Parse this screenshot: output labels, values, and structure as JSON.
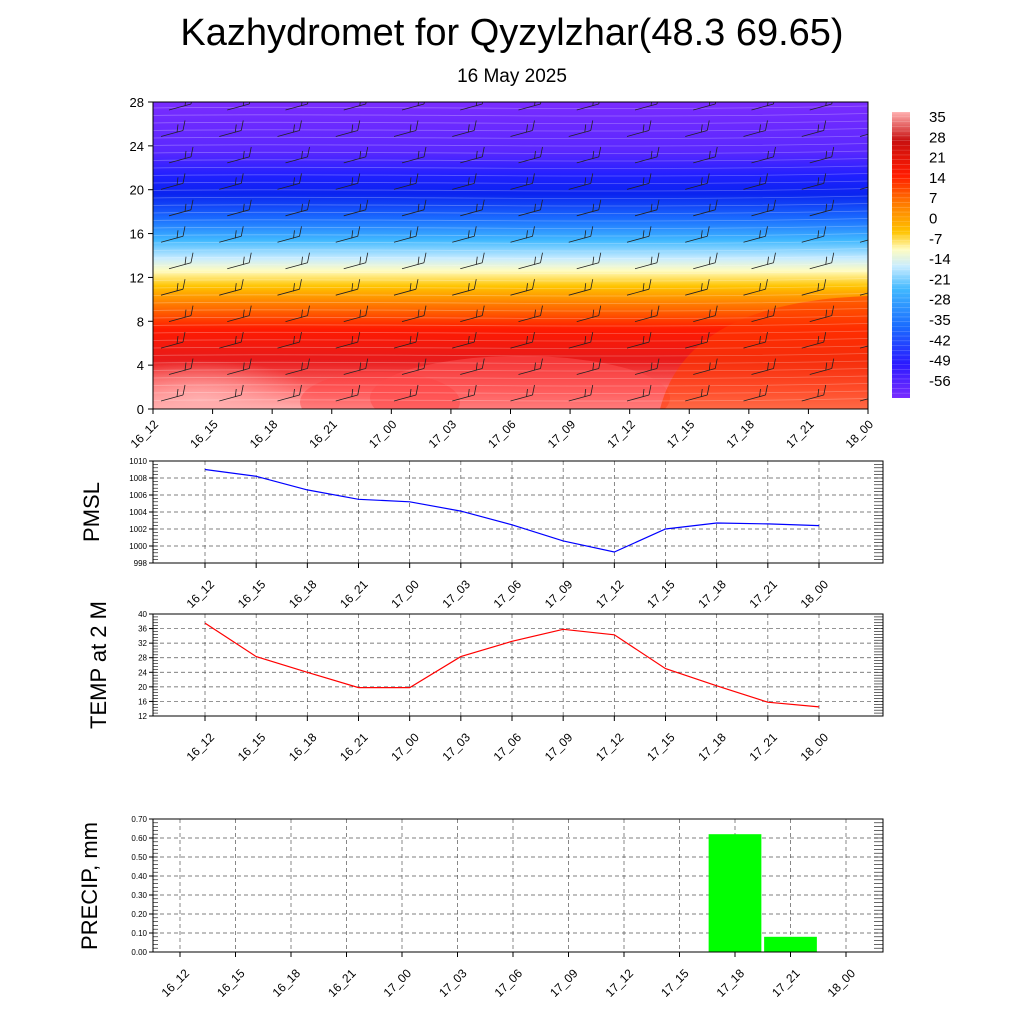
{
  "title": "Kazhydromet for Qyzylzhar(48.3 69.65)",
  "subtitle": "16 May 2025",
  "time_labels": [
    "16_12",
    "16_15",
    "16_18",
    "16_21",
    "17_00",
    "17_03",
    "17_06",
    "17_09",
    "17_12",
    "17_15",
    "17_18",
    "17_21",
    "18_00"
  ],
  "chart_data": [
    {
      "type": "heatmap",
      "yticks": [
        0,
        4,
        8,
        12,
        16,
        20,
        24,
        28
      ],
      "ylim": [
        0,
        28
      ],
      "colorbar": {
        "labels": [
          "35",
          "28",
          "21",
          "14",
          "7",
          "0",
          "-7",
          "-14",
          "-21",
          "-28",
          "-35",
          "-42",
          "-49",
          "-56"
        ],
        "range": [
          -60,
          38
        ]
      },
      "notes_shown": "temperature contours with wind barbs"
    },
    {
      "type": "line",
      "ylabel": "PMSL",
      "ylim": [
        998,
        1010
      ],
      "yticks": [
        998,
        1000,
        1002,
        1004,
        1006,
        1008,
        1010
      ],
      "x": [
        "16_12",
        "16_15",
        "16_18",
        "16_21",
        "17_00",
        "17_03",
        "17_06",
        "17_09",
        "17_12",
        "17_15",
        "17_18",
        "17_21",
        "18_00"
      ],
      "values": [
        1009.0,
        1008.2,
        1006.6,
        1005.5,
        1005.2,
        1004.1,
        1002.5,
        1000.6,
        999.3,
        1002.0,
        1002.7,
        1002.6,
        1002.4
      ],
      "color": "#0000ff"
    },
    {
      "type": "line",
      "ylabel": "TEMP at 2 M",
      "ylim": [
        12,
        40
      ],
      "yticks": [
        12,
        16,
        20,
        24,
        28,
        32,
        36,
        40
      ],
      "x": [
        "16_12",
        "16_15",
        "16_18",
        "16_21",
        "17_00",
        "17_03",
        "17_06",
        "17_09",
        "17_12",
        "17_15",
        "17_18",
        "17_21",
        "18_00"
      ],
      "values": [
        37.5,
        28.3,
        24.0,
        19.8,
        19.8,
        28.3,
        32.5,
        35.8,
        34.3,
        25.0,
        20.3,
        15.8,
        14.5
      ],
      "color": "#ff0000"
    },
    {
      "type": "bar",
      "ylabel": "PRECIP, mm",
      "ylim": [
        0,
        0.7
      ],
      "yticks": [
        "0.00",
        "0.10",
        "0.20",
        "0.30",
        "0.40",
        "0.50",
        "0.60",
        "0.70"
      ],
      "x": [
        "16_12",
        "16_15",
        "16_18",
        "16_21",
        "17_00",
        "17_03",
        "17_06",
        "17_09",
        "17_12",
        "17_15",
        "17_18",
        "17_21",
        "18_00"
      ],
      "values": [
        0,
        0,
        0,
        0,
        0,
        0,
        0,
        0,
        0,
        0,
        0.62,
        0.08,
        0
      ],
      "color": "#00ff00"
    }
  ]
}
